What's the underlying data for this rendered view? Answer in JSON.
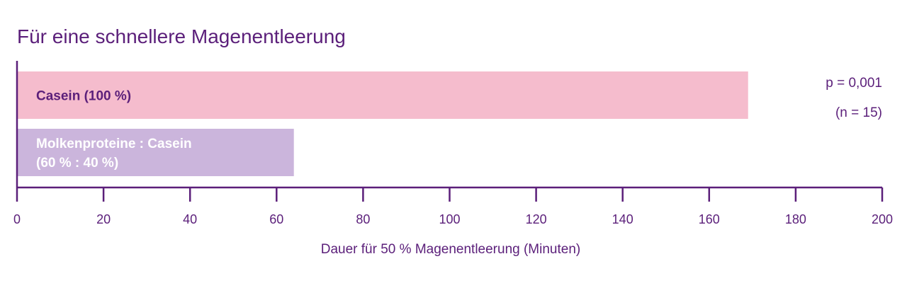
{
  "chart_data": {
    "type": "bar",
    "orientation": "horizontal",
    "title": "Für eine schnellere Magenentleerung",
    "xlabel": "Dauer für 50 % Magenentleerung (Minuten)",
    "ylabel": "",
    "xlim": [
      0,
      200
    ],
    "xticks": [
      0,
      20,
      40,
      60,
      80,
      100,
      120,
      140,
      160,
      180,
      200
    ],
    "categories": [
      [
        "Casein (100 %)"
      ],
      [
        "Molkenproteine : Casein",
        "(60 % : 40 %)"
      ]
    ],
    "values": [
      169,
      64
    ],
    "bar_colors": [
      "#f5bccd",
      "#cbb5dc"
    ],
    "label_colors": [
      "#5b1f7a",
      "#ffffff"
    ],
    "annotations": [
      "p = 0,001",
      "(n = 15)"
    ],
    "annotation_position": "right",
    "grid": false,
    "legend": "none"
  },
  "colors": {
    "title": "#5b1f7a",
    "axis": "#5b1f7a",
    "text": "#5b1f7a"
  }
}
